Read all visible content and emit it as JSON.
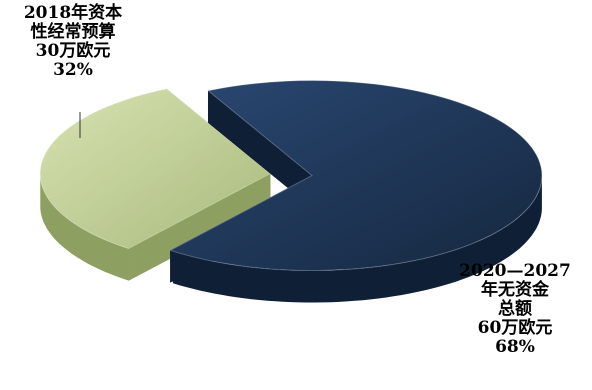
{
  "chart_data": {
    "type": "pie",
    "style": "3d-exploded",
    "title": "",
    "slices": [
      {
        "label_lines": [
          "2018年资本",
          "性经常预算",
          "30万欧元",
          "32%"
        ],
        "value": 32,
        "color": "#b9c88f",
        "side_color": "#8e9f62"
      },
      {
        "label_lines": [
          "2020—2027",
          "年无资金",
          "总额",
          "60万欧元",
          "68%"
        ],
        "value": 68,
        "color": "#1e3557",
        "side_color": "#0f1f36"
      }
    ],
    "legend": "none",
    "leader_line": true
  }
}
